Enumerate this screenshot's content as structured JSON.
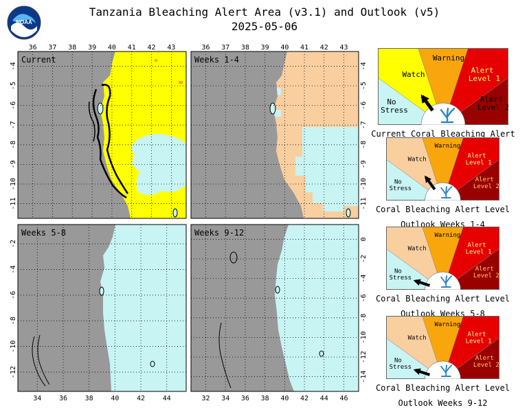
{
  "title": "Tanzania Bleaching Alert Area (v3.1) and Outlook (v5)",
  "date": "2025-05-06",
  "logo_text": "NOAA",
  "colors": {
    "land": "#999999",
    "no_stress": "#c8f4f4",
    "watch": "#ffff00",
    "watch_outlook": "#f9cfa0",
    "warning": "#f8a60c",
    "alert1": "#e60000",
    "alert2": "#990000"
  },
  "panels": [
    {
      "label": "Current",
      "lon_ticks": [
        "36",
        "37",
        "38",
        "39",
        "40",
        "41",
        "42",
        "43"
      ],
      "lat_ticks": [
        "-4",
        "-5",
        "-6",
        "-7",
        "-8",
        "-9",
        "-10",
        "-11"
      ],
      "lon_pos": "top",
      "lat_left": true,
      "lat_right": false
    },
    {
      "label": "Weeks 1-4",
      "lon_ticks": [
        "36",
        "37",
        "38",
        "39",
        "40",
        "41",
        "42",
        "43"
      ],
      "lat_ticks": [
        "-4",
        "-5",
        "-6",
        "-7",
        "-8",
        "-9",
        "-10",
        "-11"
      ],
      "lon_pos": "top",
      "lat_left": false,
      "lat_right": true
    },
    {
      "label": "Weeks 5-8",
      "lon_ticks": [
        "34",
        "36",
        "38",
        "40",
        "42",
        "44"
      ],
      "lat_ticks": [
        "-2",
        "-4",
        "-6",
        "-8",
        "-10",
        "-12"
      ],
      "lon_pos": "bottom",
      "lat_left": true,
      "lat_right": false
    },
    {
      "label": "Weeks 9-12",
      "lon_ticks": [
        "32",
        "34",
        "36",
        "38",
        "40",
        "42",
        "44",
        "46"
      ],
      "lat_ticks": [
        "0",
        "-2",
        "-4",
        "-6",
        "-8",
        "-10",
        "-12",
        "-14"
      ],
      "lon_pos": "bottom",
      "lat_left": false,
      "lat_right": true
    }
  ],
  "gauges": [
    {
      "caption_line1": "Current Coral Bleaching Alert Level",
      "caption_line2": "",
      "level": "Watch",
      "labels": {
        "no_stress_1": "No",
        "no_stress_2": "Stress",
        "watch": "Watch",
        "warning": "Warning",
        "alert1_1": "Alert",
        "alert1_2": "Level 1",
        "alert2_1": "Alert",
        "alert2_2": "Level 2"
      }
    },
    {
      "caption_line1": "Coral Bleaching Alert Level",
      "caption_line2": "Outlook Weeks 1-4",
      "level": "Watch",
      "labels": {
        "no_stress_1": "No",
        "no_stress_2": "Stress",
        "watch": "Watch",
        "warning": "Warning",
        "alert1_1": "Alert",
        "alert1_2": "Level 1",
        "alert2_1": "Alert",
        "alert2_2": "Level 2"
      }
    },
    {
      "caption_line1": "Coral Bleaching Alert Level",
      "caption_line2": "Outlook Weeks 5-8",
      "level": "No Stress",
      "labels": {
        "no_stress_1": "No",
        "no_stress_2": "Stress",
        "watch": "Watch",
        "warning": "Warning",
        "alert1_1": "Alert",
        "alert1_2": "Level 1",
        "alert2_1": "Alert",
        "alert2_2": "Level 2"
      }
    },
    {
      "caption_line1": "Coral Bleaching Alert Level",
      "caption_line2": "Outlook Weeks 9-12",
      "level": "No Stress",
      "labels": {
        "no_stress_1": "No",
        "no_stress_2": "Stress",
        "watch": "Watch",
        "warning": "Warning",
        "alert1_1": "Alert",
        "alert1_2": "Level 1",
        "alert2_1": "Alert",
        "alert2_2": "Level 2"
      }
    }
  ]
}
